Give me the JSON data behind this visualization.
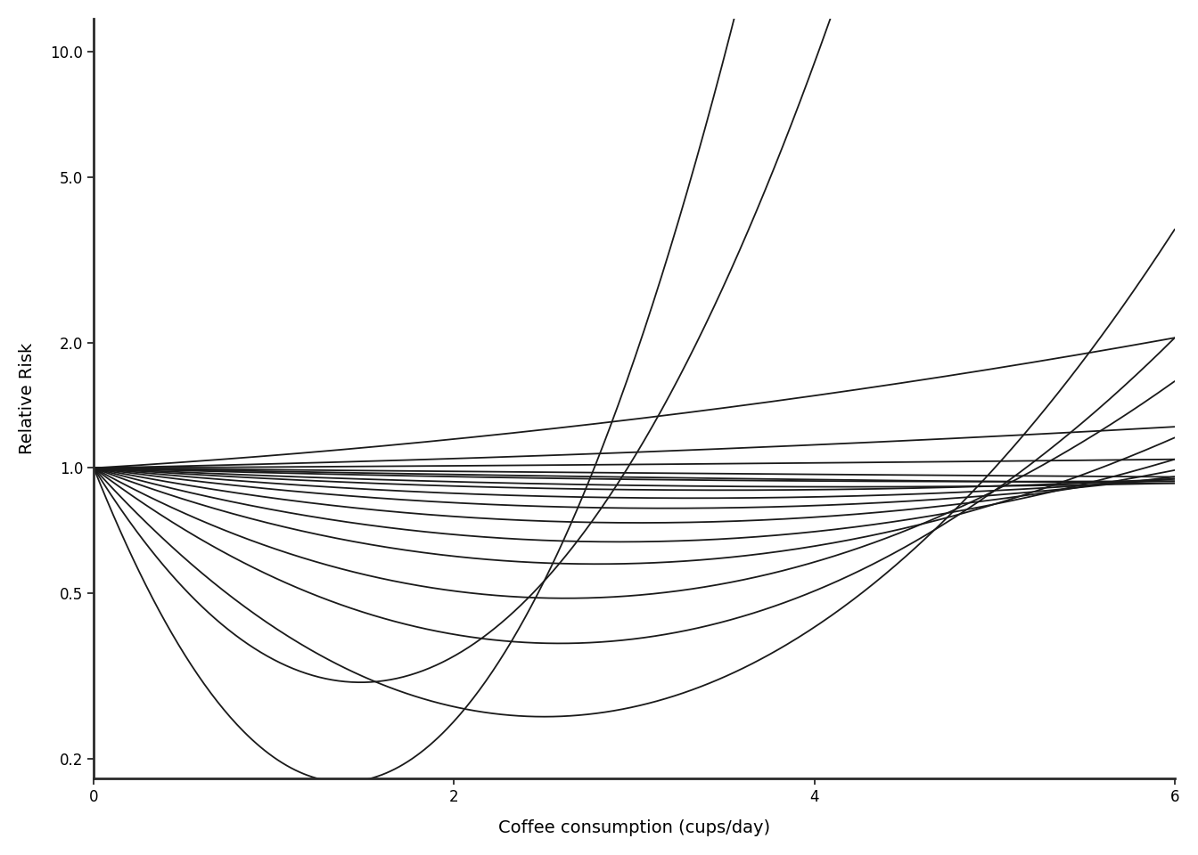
{
  "xlabel": "Coffee consumption (cups/day)",
  "ylabel": "Relative Risk",
  "xlim": [
    0,
    6
  ],
  "ylim_log": [
    0.18,
    12.0
  ],
  "yticks": [
    0.2,
    0.5,
    1.0,
    2.0,
    5.0,
    10.0
  ],
  "ytick_labels": [
    "0.2",
    "0.5",
    "1.0",
    "2.0",
    "5.0",
    "10.0"
  ],
  "xticks": [
    0,
    2,
    4,
    6
  ],
  "panel_bg": "#ebebeb",
  "plot_bg": "#ffffff",
  "grid_color": "#ffffff",
  "line_color": "#1a1a1a",
  "line_width": 1.3,
  "curves_params": [
    [
      -1.1,
      0.22
    ],
    [
      -0.75,
      0.145
    ],
    [
      -0.55,
      0.105
    ],
    [
      -0.38,
      0.068
    ],
    [
      -0.28,
      0.048
    ],
    [
      -0.2,
      0.033
    ],
    [
      -0.14,
      0.022
    ],
    [
      -0.1,
      0.015
    ],
    [
      -0.07,
      0.01
    ],
    [
      -0.05,
      0.006
    ],
    [
      -0.03,
      0.003
    ],
    [
      -0.02,
      0.001
    ],
    [
      -0.01,
      0.0003
    ],
    [
      0.005,
      0.0005
    ],
    [
      0.02,
      0.003
    ],
    [
      0.06,
      0.01
    ],
    [
      -1.6,
      0.54
    ],
    [
      -2.5,
      0.9
    ]
  ],
  "xmax": 6.0,
  "n_points": 500
}
